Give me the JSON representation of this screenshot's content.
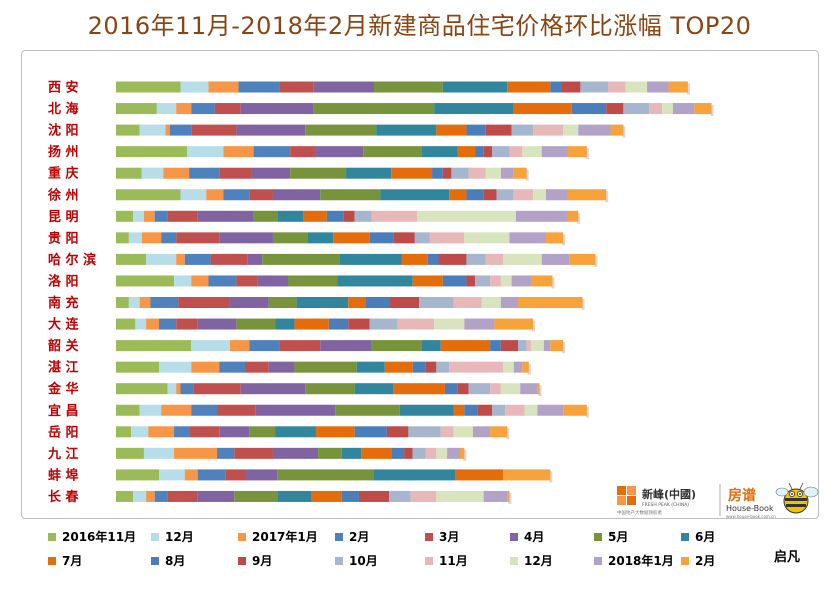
{
  "title": "2016年11月-2018年2月新建商品住宅价格环比涨幅 TOP20",
  "chart_data": {
    "type": "bar",
    "stacked": true,
    "orientation": "horizontal",
    "categories": [
      "西  安",
      "北  海",
      "沈  阳",
      "扬  州",
      "重  庆",
      "徐  州",
      "昆  明",
      "贵  阳",
      "哈 尔 滨",
      "洛  阳",
      "南  充",
      "大  连",
      "韶  关",
      "湛  江",
      "金  华",
      "宜  昌",
      "岳  阳",
      "九  江",
      "蚌  埠",
      "长  春"
    ],
    "series": [
      {
        "name": "2016年11月",
        "color": "#9bbb59",
        "values": [
          3.0,
          1.9,
          1.1,
          3.3,
          1.2,
          3.0,
          0.8,
          0.6,
          1.4,
          2.7,
          0.6,
          0.9,
          3.5,
          2.0,
          2.4,
          1.1,
          0.7,
          1.3,
          2.0,
          0.8
        ]
      },
      {
        "name": "12月",
        "color": "#b7dee8",
        "values": [
          1.3,
          0.9,
          1.2,
          1.7,
          1.0,
          1.2,
          0.5,
          0.6,
          1.4,
          0.8,
          0.5,
          0.5,
          1.8,
          1.5,
          0.4,
          1.0,
          0.8,
          1.4,
          1.2,
          0.6
        ]
      },
      {
        "name": "2017年1月",
        "color": "#f79646",
        "values": [
          1.4,
          0.7,
          0.2,
          1.4,
          1.2,
          0.8,
          0.5,
          0.9,
          0.4,
          0.8,
          0.5,
          0.6,
          0.9,
          1.3,
          0.2,
          1.4,
          1.2,
          2.0,
          0.6,
          0.4
        ]
      },
      {
        "name": "2月",
        "color": "#4f81bd",
        "values": [
          1.9,
          1.1,
          1.0,
          1.7,
          1.4,
          1.2,
          0.6,
          0.7,
          1.2,
          1.3,
          1.3,
          0.8,
          1.4,
          1.2,
          0.6,
          1.2,
          0.7,
          0.8,
          1.3,
          0.6
        ]
      },
      {
        "name": "3月",
        "color": "#c0504d",
        "values": [
          1.6,
          1.2,
          2.1,
          1.2,
          1.5,
          1.1,
          1.4,
          2.0,
          1.7,
          1.0,
          2.4,
          1.0,
          1.9,
          1.1,
          2.2,
          1.8,
          1.4,
          1.8,
          0.9,
          1.4
        ]
      },
      {
        "name": "4月",
        "color": "#8064a2",
        "values": [
          2.8,
          3.4,
          3.2,
          2.2,
          1.8,
          2.2,
          2.6,
          2.5,
          0.7,
          1.4,
          1.8,
          1.8,
          2.4,
          1.2,
          3.0,
          3.7,
          1.4,
          2.1,
          1.5,
          1.7
        ]
      },
      {
        "name": "5月",
        "color": "#77933c",
        "values": [
          3.2,
          5.6,
          3.3,
          2.7,
          2.6,
          2.8,
          1.1,
          1.6,
          3.6,
          2.3,
          1.3,
          1.8,
          2.3,
          2.9,
          2.3,
          3.0,
          1.2,
          1.1,
          4.5,
          2.0
        ]
      },
      {
        "name": "6月",
        "color": "#31859c",
        "values": [
          3.0,
          3.7,
          2.8,
          1.7,
          2.1,
          3.2,
          1.2,
          1.2,
          2.9,
          3.5,
          2.4,
          0.9,
          0.9,
          1.3,
          1.8,
          2.5,
          1.9,
          0.9,
          3.8,
          1.6
        ]
      },
      {
        "name": "7月",
        "color": "#e46c0a",
        "values": [
          2.0,
          2.7,
          1.4,
          0.8,
          1.9,
          0.8,
          1.1,
          1.7,
          1.2,
          1.4,
          0.8,
          1.6,
          2.3,
          1.3,
          2.4,
          0.5,
          1.8,
          1.4,
          2.2,
          1.4
        ]
      },
      {
        "name": "8月",
        "color": "#4a7ebb",
        "values": [
          0.5,
          1.6,
          0.9,
          0.4,
          0.5,
          0.8,
          0.8,
          1.1,
          0.5,
          1.1,
          1.1,
          0.9,
          0.5,
          0.6,
          0.6,
          0.6,
          1.5,
          0.6,
          0,
          0.8
        ]
      },
      {
        "name": "9月",
        "color": "#be4b48",
        "values": [
          0.9,
          0.8,
          1.2,
          0.4,
          0.4,
          0.6,
          0.5,
          1.0,
          1.3,
          0.4,
          1.4,
          1.0,
          0.8,
          0.5,
          0.5,
          0.7,
          1.0,
          0.4,
          0,
          1.4
        ]
      },
      {
        "name": "10月",
        "color": "#a5b6ce",
        "values": [
          1.3,
          1.2,
          1.0,
          0.8,
          0.8,
          0.8,
          0.8,
          0.7,
          0.9,
          0.7,
          1.6,
          1.3,
          0.4,
          0.6,
          1.0,
          0.6,
          1.5,
          0.6,
          0,
          1.0
        ]
      },
      {
        "name": "11月",
        "color": "#e6b9b8",
        "values": [
          0.8,
          0.6,
          1.4,
          0.6,
          0.8,
          0.9,
          2.1,
          1.6,
          0.8,
          0.5,
          1.3,
          1.7,
          0.2,
          2.5,
          0.5,
          0.9,
          0.6,
          0.5,
          0,
          1.2
        ]
      },
      {
        "name": "12月",
        "color": "#d7e4bd",
        "values": [
          1.0,
          0.5,
          0.7,
          0.9,
          0.7,
          0.6,
          4.6,
          2.1,
          1.8,
          0.5,
          0.9,
          1.4,
          0.6,
          0.5,
          0.9,
          0.6,
          0.9,
          0.5,
          0,
          2.2
        ]
      },
      {
        "name": "2018年1月",
        "color": "#b3a2c7",
        "values": [
          1.0,
          1.0,
          1.5,
          1.2,
          0.6,
          1.0,
          2.4,
          1.7,
          1.3,
          0.9,
          0.8,
          1.4,
          0.3,
          0.4,
          0.8,
          1.2,
          0.8,
          0.6,
          0,
          1.1
        ]
      },
      {
        "name": "2月",
        "color": "#f8a23c",
        "values": [
          0.9,
          0.8,
          0.6,
          0.9,
          0.6,
          1.8,
          0.5,
          0.8,
          1.2,
          1.0,
          3.0,
          1.8,
          0.6,
          0.3,
          0.1,
          1.1,
          0.8,
          0.2,
          2.2,
          0.1
        ]
      }
    ],
    "legend_position": "bottom",
    "grid": false
  },
  "branding": {
    "logo_left_name": "新峰(中國)",
    "logo_left_sub": "FRESH PEAK (CHINA)",
    "logo_left_tag": "中国地产大数据领航者",
    "logo_right_name": "房谱",
    "logo_right_sub": "House-Book",
    "logo_right_url": "www.house-book.com.cn"
  },
  "author": "启凡"
}
